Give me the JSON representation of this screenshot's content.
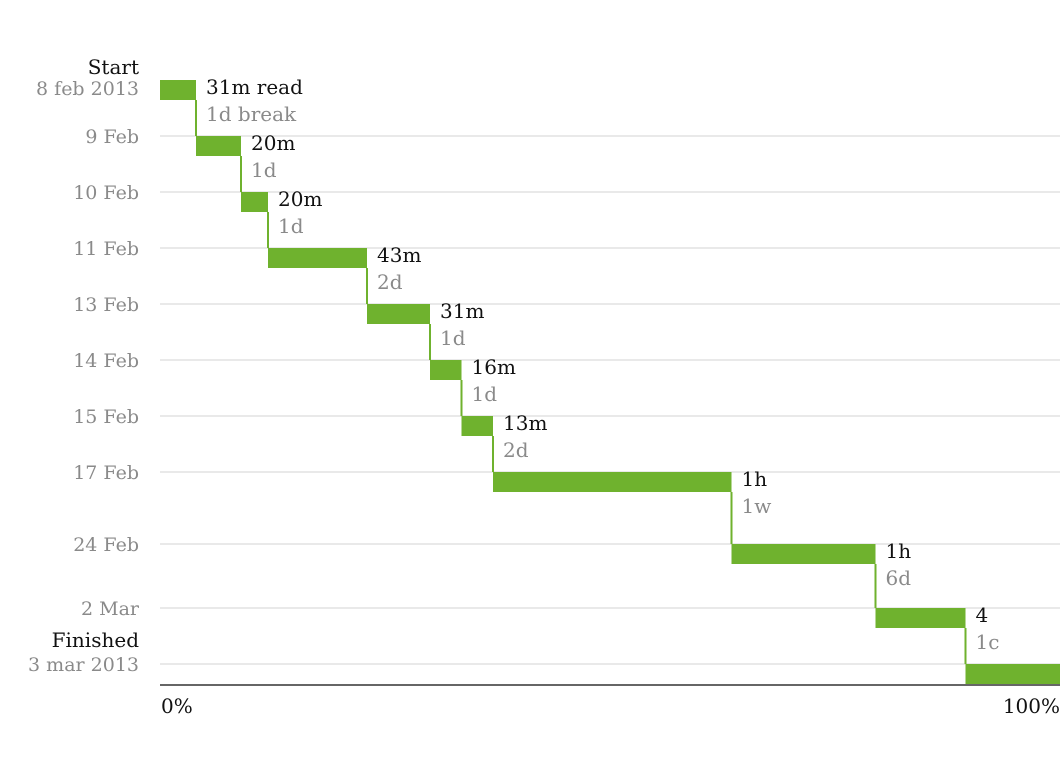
{
  "chart_data": {
    "type": "bar",
    "start": {
      "label": "Start",
      "date": "8 feb 2013"
    },
    "finish": {
      "label": "Finished",
      "date": "3 mar 2013"
    },
    "xlim": [
      0,
      100
    ],
    "x_ticks": [
      "0%",
      "100%"
    ],
    "color": "#6fb22e",
    "sessions": [
      {
        "date": "8 feb 2013",
        "day": 0,
        "from": 0,
        "to": 4,
        "duration": "31m read",
        "break": "1d break"
      },
      {
        "date": "9 Feb",
        "day": 1,
        "from": 4,
        "to": 9,
        "duration": "20m",
        "break": "1d"
      },
      {
        "date": "10 Feb",
        "day": 2,
        "from": 9,
        "to": 12,
        "duration": "20m",
        "break": "1d"
      },
      {
        "date": "11 Feb",
        "day": 3,
        "from": 12,
        "to": 23,
        "duration": "43m",
        "break": "2d"
      },
      {
        "date": "13 Feb",
        "day": 5,
        "from": 23,
        "to": 30,
        "duration": "31m",
        "break": "1d"
      },
      {
        "date": "14 Feb",
        "day": 6,
        "from": 30,
        "to": 33.5,
        "duration": "16m",
        "break": "1d"
      },
      {
        "date": "15 Feb",
        "day": 7,
        "from": 33.5,
        "to": 37,
        "duration": "13m",
        "break": "2d"
      },
      {
        "date": "17 Feb",
        "day": 9,
        "from": 37,
        "to": 63.5,
        "duration": "1h",
        "break": "1w"
      },
      {
        "date": "24 Feb",
        "day": 16,
        "from": 63.5,
        "to": 79.5,
        "duration": "1h",
        "break": "6d"
      },
      {
        "date": "2 Mar",
        "day": 22,
        "from": 79.5,
        "to": 89.5,
        "duration": "4",
        "break": "1c"
      },
      {
        "date": "3 mar 2013",
        "day": 23,
        "from": 89.5,
        "to": 100,
        "duration": "",
        "break": ""
      }
    ]
  }
}
